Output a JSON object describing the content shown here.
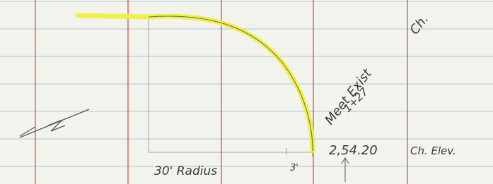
{
  "annotations": {
    "meet": "Meet Exist",
    "channel": "Ch.",
    "station": "1+27",
    "elevation": "2,54.20",
    "elevation_label": "Ch. Elev.",
    "radius": "30' Radius",
    "offset": "3'"
  }
}
